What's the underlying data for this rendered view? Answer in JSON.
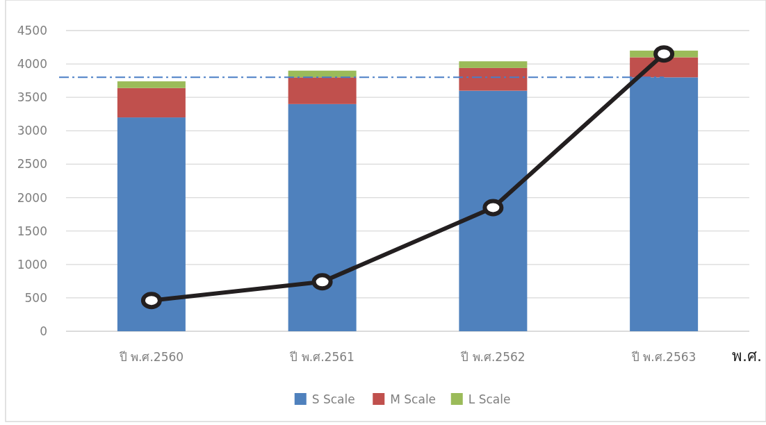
{
  "chart_data": {
    "type": "bar",
    "stacked": true,
    "xlabel": "พ.ศ.",
    "categories": [
      "ปี พ.ศ.2560",
      "ปี พ.ศ.2561",
      "ปี พ.ศ.2562",
      "ปี พ.ศ.2563"
    ],
    "series": [
      {
        "name": "S Scale",
        "color": "#4f81bd",
        "values": [
          3200,
          3400,
          3600,
          3800
        ]
      },
      {
        "name": "M Scale",
        "color": "#c0504d",
        "values": [
          440,
          400,
          340,
          300
        ]
      },
      {
        "name": "L Scale",
        "color": "#9bbb59",
        "values": [
          100,
          100,
          100,
          100
        ]
      },
      {
        "type": "line",
        "color": "#231f20",
        "marker": "circle",
        "values": [
          460,
          740,
          1850,
          4150
        ]
      }
    ],
    "ylim": [
      0,
      4500
    ],
    "yticks": [
      0,
      500,
      1000,
      1500,
      2000,
      2500,
      3000,
      3500,
      4000,
      4500
    ],
    "grid": "y",
    "legend": "bottom",
    "ref_lines": [
      {
        "axis": "y",
        "value": 3800,
        "color": "#4a7ec5",
        "line_style": "dashdot"
      }
    ]
  }
}
